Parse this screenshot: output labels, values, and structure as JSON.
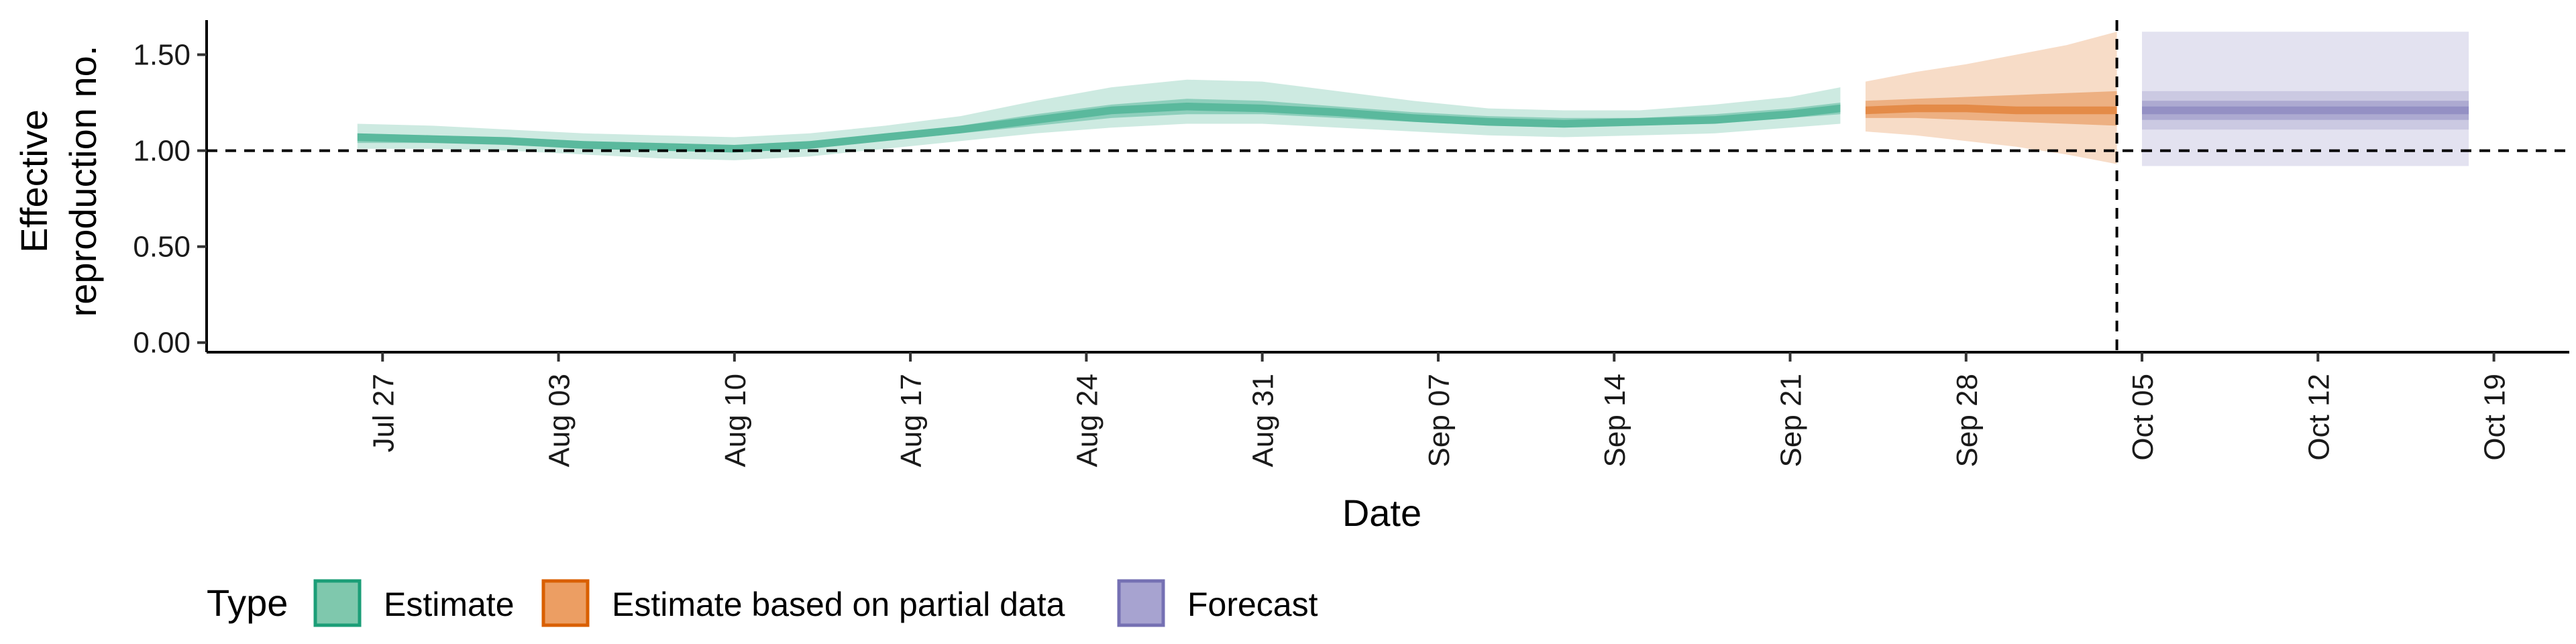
{
  "chart_data": {
    "type": "area",
    "xlabel": "Date",
    "ylabel": [
      "Effective",
      "reproduction no."
    ],
    "ylim": [
      -0.05,
      1.68
    ],
    "y_ticks": [
      0.0,
      0.5,
      1.0,
      1.5
    ],
    "y_tick_labels": [
      "0.00",
      "0.50",
      "1.00",
      "1.50"
    ],
    "x_range": [
      "2020-07-20",
      "2020-10-22"
    ],
    "x_ticks": [
      "2020-07-27",
      "2020-08-03",
      "2020-08-10",
      "2020-08-17",
      "2020-08-24",
      "2020-08-31",
      "2020-09-07",
      "2020-09-14",
      "2020-09-21",
      "2020-09-28",
      "2020-10-05",
      "2020-10-12",
      "2020-10-19"
    ],
    "x_tick_labels": [
      "Jul 27",
      "Aug 03",
      "Aug 10",
      "Aug 17",
      "Aug 24",
      "Aug 31",
      "Sep 07",
      "Sep 14",
      "Sep 21",
      "Sep 28",
      "Oct 05",
      "Oct 12",
      "Oct 19"
    ],
    "reference_hline": 1.0,
    "reference_vline": "2020-10-04",
    "legend_title": "Type",
    "legend_position": "bottom-left",
    "legend": [
      {
        "label": "Estimate",
        "fill": "#7fc8ad",
        "stroke": "#1b9e77"
      },
      {
        "label": "Estimate based on partial data",
        "fill": "#ec9e63",
        "stroke": "#d95f02"
      },
      {
        "label": "Forecast",
        "fill": "#a7a3d0",
        "stroke": "#7570b3"
      }
    ],
    "series": [
      {
        "name": "Estimate",
        "color": "#1b9e77",
        "x": [
          "2020-07-26",
          "2020-07-29",
          "2020-08-01",
          "2020-08-04",
          "2020-08-07",
          "2020-08-10",
          "2020-08-13",
          "2020-08-16",
          "2020-08-19",
          "2020-08-22",
          "2020-08-25",
          "2020-08-28",
          "2020-08-31",
          "2020-09-03",
          "2020-09-06",
          "2020-09-09",
          "2020-09-12",
          "2020-09-15",
          "2020-09-18",
          "2020-09-21",
          "2020-09-23"
        ],
        "median": [
          1.07,
          1.06,
          1.05,
          1.03,
          1.02,
          1.01,
          1.03,
          1.07,
          1.11,
          1.16,
          1.21,
          1.23,
          1.22,
          1.2,
          1.17,
          1.15,
          1.14,
          1.15,
          1.16,
          1.19,
          1.22
        ],
        "lower_50": [
          1.04,
          1.04,
          1.03,
          1.01,
          1.0,
          0.99,
          1.01,
          1.05,
          1.09,
          1.13,
          1.17,
          1.19,
          1.19,
          1.17,
          1.15,
          1.13,
          1.12,
          1.13,
          1.14,
          1.17,
          1.19
        ],
        "upper_50": [
          1.09,
          1.08,
          1.07,
          1.05,
          1.04,
          1.03,
          1.05,
          1.09,
          1.13,
          1.19,
          1.24,
          1.27,
          1.26,
          1.23,
          1.2,
          1.18,
          1.17,
          1.17,
          1.19,
          1.22,
          1.25
        ],
        "lower_90": [
          1.01,
          1.01,
          1.0,
          0.98,
          0.96,
          0.95,
          0.97,
          1.01,
          1.05,
          1.09,
          1.12,
          1.14,
          1.14,
          1.12,
          1.1,
          1.08,
          1.07,
          1.08,
          1.09,
          1.12,
          1.14
        ],
        "upper_90": [
          1.14,
          1.13,
          1.11,
          1.09,
          1.08,
          1.07,
          1.09,
          1.13,
          1.18,
          1.26,
          1.33,
          1.37,
          1.36,
          1.31,
          1.26,
          1.22,
          1.21,
          1.21,
          1.24,
          1.28,
          1.33
        ]
      },
      {
        "name": "Estimate based on partial data",
        "color": "#d95f02",
        "x": [
          "2020-09-24",
          "2020-09-26",
          "2020-09-28",
          "2020-09-30",
          "2020-10-02",
          "2020-10-04"
        ],
        "median": [
          1.21,
          1.22,
          1.22,
          1.21,
          1.21,
          1.21
        ],
        "lower_50": [
          1.17,
          1.17,
          1.16,
          1.15,
          1.14,
          1.13
        ],
        "upper_50": [
          1.26,
          1.27,
          1.28,
          1.29,
          1.3,
          1.31
        ],
        "lower_90": [
          1.1,
          1.08,
          1.05,
          1.02,
          0.98,
          0.93
        ],
        "upper_90": [
          1.36,
          1.41,
          1.45,
          1.5,
          1.55,
          1.62
        ]
      },
      {
        "name": "Forecast",
        "color": "#7570b3",
        "x": [
          "2020-10-05",
          "2020-10-18"
        ],
        "median": [
          1.21,
          1.21
        ],
        "lower_50": [
          1.16,
          1.16
        ],
        "upper_50": [
          1.26,
          1.26
        ],
        "lower_90": [
          1.11,
          1.11
        ],
        "upper_90": [
          1.31,
          1.31
        ],
        "lower_outer": [
          0.92,
          0.92
        ],
        "upper_outer": [
          1.62,
          1.62
        ]
      }
    ]
  }
}
